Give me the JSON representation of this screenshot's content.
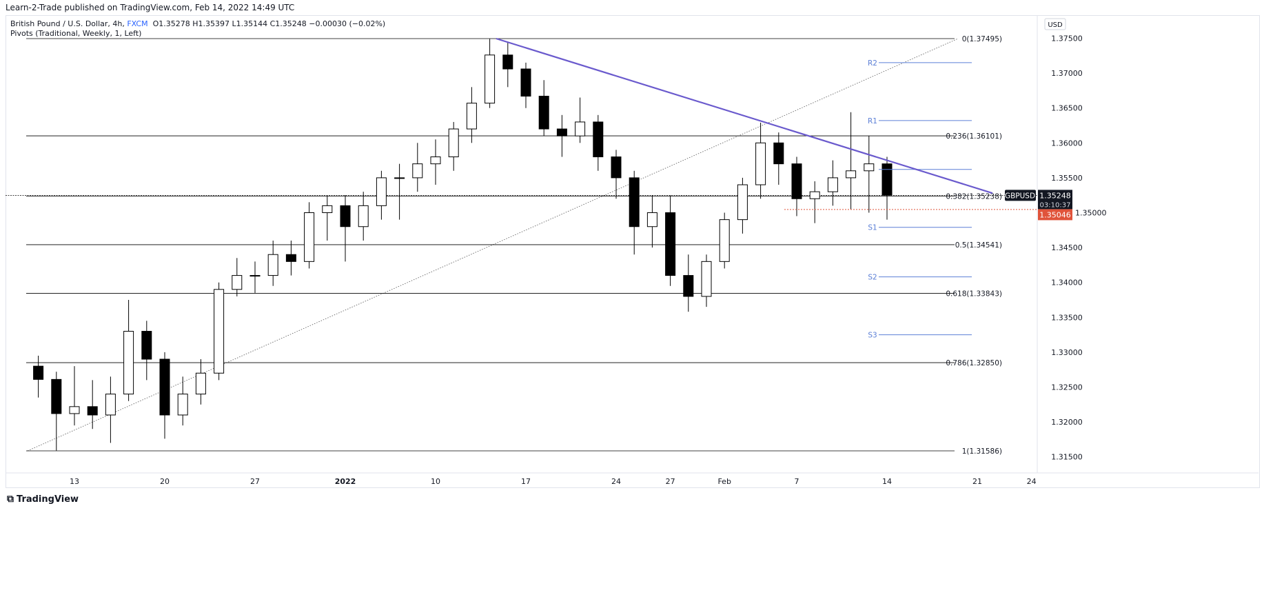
{
  "publisher_line": "Learn-2-Trade published on TradingView.com, Feb 14, 2022 14:49 UTC",
  "legend": {
    "symbol_desc": "British Pound / U.S. Dollar, 4h,",
    "exchange": "FXCM",
    "ohlc": "O1.35278  H1.35397  L1.35144  C1.35248  −0.00030 (−0.02%)",
    "indicator": "Pivots (Traditional, Weekly, 1, Left)"
  },
  "currency": "USD",
  "footer_brand": "TradingView",
  "colors": {
    "candle": "#000000",
    "trendline": "#6a5acd",
    "pivot": "#5b7fd6",
    "current_price_bg": "#131722",
    "low_marker": "#e0533a",
    "fib": "#000000"
  },
  "chart_data": {
    "type": "candlestick",
    "symbol": "GBPUSD",
    "timeframe": "4h",
    "ylim": [
      1.3125,
      1.3775
    ],
    "y_ticks": [
      "1.37500",
      "1.37000",
      "1.36500",
      "1.36000",
      "1.35500",
      "1.35000",
      "1.34500",
      "1.34000",
      "1.33500",
      "1.33000",
      "1.32500",
      "1.32000",
      "1.31500"
    ],
    "x_ticks": [
      {
        "label": "13",
        "date": "2021-12-13"
      },
      {
        "label": "20",
        "date": "2021-12-20"
      },
      {
        "label": "27",
        "date": "2021-12-27"
      },
      {
        "label": "2022",
        "date": "2022-01-03"
      },
      {
        "label": "10",
        "date": "2022-01-10"
      },
      {
        "label": "17",
        "date": "2022-01-17"
      },
      {
        "label": "24",
        "date": "2022-01-24"
      },
      {
        "label": "27",
        "date": "2022-01-27"
      },
      {
        "label": "Feb",
        "date": "2022-02-01"
      },
      {
        "label": "7",
        "date": "2022-02-07"
      },
      {
        "label": "14",
        "date": "2022-02-14"
      },
      {
        "label": "21",
        "date": "2022-02-21"
      },
      {
        "label": "24",
        "date": "2022-02-24"
      }
    ],
    "candles_approx_daily": [
      [
        "2021-12-09",
        1.328,
        1.3295,
        1.3235,
        1.3261
      ],
      [
        "2021-12-10",
        1.3261,
        1.3272,
        1.3159,
        1.3212
      ],
      [
        "2021-12-13",
        1.3212,
        1.328,
        1.3195,
        1.3222
      ],
      [
        "2021-12-14",
        1.3222,
        1.326,
        1.319,
        1.321
      ],
      [
        "2021-12-15",
        1.321,
        1.3265,
        1.317,
        1.324
      ],
      [
        "2021-12-16",
        1.324,
        1.3375,
        1.323,
        1.333
      ],
      [
        "2021-12-17",
        1.333,
        1.3345,
        1.326,
        1.329
      ],
      [
        "2021-12-20",
        1.329,
        1.33,
        1.3176,
        1.321
      ],
      [
        "2021-12-21",
        1.321,
        1.3265,
        1.3195,
        1.324
      ],
      [
        "2021-12-22",
        1.324,
        1.329,
        1.3225,
        1.327
      ],
      [
        "2021-12-23",
        1.327,
        1.34,
        1.326,
        1.339
      ],
      [
        "2021-12-24",
        1.339,
        1.3435,
        1.338,
        1.341
      ],
      [
        "2021-12-27",
        1.341,
        1.343,
        1.3385,
        1.341
      ],
      [
        "2021-12-28",
        1.341,
        1.346,
        1.3395,
        1.344
      ],
      [
        "2021-12-29",
        1.344,
        1.346,
        1.341,
        1.343
      ],
      [
        "2021-12-30",
        1.343,
        1.3515,
        1.342,
        1.35
      ],
      [
        "2021-12-31",
        1.35,
        1.3525,
        1.346,
        1.351
      ],
      [
        "2022-01-03",
        1.351,
        1.3525,
        1.343,
        1.348
      ],
      [
        "2022-01-04",
        1.348,
        1.353,
        1.346,
        1.351
      ],
      [
        "2022-01-05",
        1.351,
        1.356,
        1.349,
        1.355
      ],
      [
        "2022-01-06",
        1.355,
        1.357,
        1.349,
        1.355
      ],
      [
        "2022-01-07",
        1.355,
        1.36,
        1.353,
        1.357
      ],
      [
        "2022-01-10",
        1.357,
        1.3605,
        1.354,
        1.358
      ],
      [
        "2022-01-11",
        1.358,
        1.363,
        1.356,
        1.362
      ],
      [
        "2022-01-12",
        1.362,
        1.368,
        1.36,
        1.3657
      ],
      [
        "2022-01-13",
        1.3657,
        1.3749,
        1.365,
        1.3726
      ],
      [
        "2022-01-14",
        1.3726,
        1.3745,
        1.368,
        1.3706
      ],
      [
        "2022-01-17",
        1.3706,
        1.3715,
        1.365,
        1.3667
      ],
      [
        "2022-01-18",
        1.3667,
        1.369,
        1.361,
        1.362
      ],
      [
        "2022-01-19",
        1.362,
        1.364,
        1.358,
        1.361
      ],
      [
        "2022-01-20",
        1.361,
        1.3665,
        1.36,
        1.363
      ],
      [
        "2022-01-21",
        1.363,
        1.364,
        1.356,
        1.358
      ],
      [
        "2022-01-24",
        1.358,
        1.359,
        1.352,
        1.355
      ],
      [
        "2022-01-25",
        1.355,
        1.356,
        1.344,
        1.348
      ],
      [
        "2022-01-26",
        1.348,
        1.3525,
        1.345,
        1.35
      ],
      [
        "2022-01-27",
        1.35,
        1.3525,
        1.3395,
        1.341
      ],
      [
        "2022-01-28",
        1.341,
        1.344,
        1.3358,
        1.338
      ],
      [
        "2022-01-31",
        1.338,
        1.344,
        1.3365,
        1.343
      ],
      [
        "2022-02-01",
        1.343,
        1.35,
        1.342,
        1.349
      ],
      [
        "2022-02-02",
        1.349,
        1.355,
        1.347,
        1.354
      ],
      [
        "2022-02-03",
        1.354,
        1.3629,
        1.352,
        1.36
      ],
      [
        "2022-02-04",
        1.36,
        1.3615,
        1.354,
        1.357
      ],
      [
        "2022-02-07",
        1.357,
        1.358,
        1.3495,
        1.352
      ],
      [
        "2022-02-08",
        1.352,
        1.3545,
        1.3485,
        1.353
      ],
      [
        "2022-02-09",
        1.353,
        1.3575,
        1.351,
        1.355
      ],
      [
        "2022-02-10",
        1.355,
        1.3644,
        1.3505,
        1.356
      ],
      [
        "2022-02-11",
        1.356,
        1.361,
        1.35,
        1.357
      ],
      [
        "2022-02-14",
        1.357,
        1.358,
        1.349,
        1.3525
      ]
    ],
    "fib_retracement": [
      {
        "label": "0(1.37495)",
        "value": 1.37495
      },
      {
        "label": "0.236(1.36101)",
        "value": 1.36101
      },
      {
        "label": "0.382(1.35238)",
        "value": 1.35238
      },
      {
        "label": "0.5(1.34541)",
        "value": 1.34541
      },
      {
        "label": "0.618(1.33843)",
        "value": 1.33843
      },
      {
        "label": "0.786(1.32850)",
        "value": 1.3285
      },
      {
        "label": "1(1.31586)",
        "value": 1.31586
      }
    ],
    "pivots": [
      {
        "label": "R2",
        "value": 1.3715
      },
      {
        "label": "R1",
        "value": 1.3632
      },
      {
        "label": "",
        "value": 1.3562
      },
      {
        "label": "S1",
        "value": 1.3479
      },
      {
        "label": "S2",
        "value": 1.3408
      },
      {
        "label": "S3",
        "value": 1.3325
      }
    ],
    "trendline": [
      {
        "date": "2022-01-13",
        "value": 1.37495
      },
      {
        "date": "2022-02-16",
        "value": 1.3528
      }
    ],
    "fib_diagonal": [
      {
        "date": "2021-12-10",
        "value": 1.31586
      },
      {
        "date": "2022-02-14",
        "value": 1.37495
      }
    ],
    "current_price": {
      "symbol": "GBPUSD",
      "value": "1.35248",
      "countdown": "03:10:37"
    },
    "low_marker": {
      "value": "1.35046"
    }
  }
}
